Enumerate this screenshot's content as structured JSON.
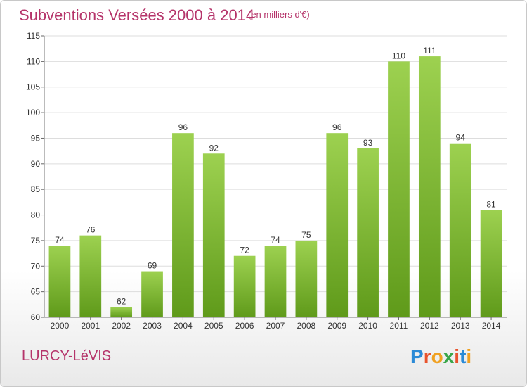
{
  "header": {
    "title": "Subventions Versées 2000 à 2014",
    "unit": "(en milliers d'€)"
  },
  "footer": {
    "commune": "LURCY-LéVIS",
    "brand": "Proxiti"
  },
  "colors": {
    "title": "#b5346a",
    "bar_top": "#9dd150",
    "bar_bottom": "#5f9a1a",
    "grid": "#dddddd"
  },
  "chart_data": {
    "type": "bar",
    "title": "Subventions Versées 2000 à 2014",
    "subtitle": "(en milliers d'€)",
    "xlabel": "",
    "ylabel": "",
    "categories": [
      "2000",
      "2001",
      "2002",
      "2003",
      "2004",
      "2005",
      "2006",
      "2007",
      "2008",
      "2009",
      "2010",
      "2011",
      "2012",
      "2013",
      "2014"
    ],
    "values": [
      74,
      76,
      62,
      69,
      96,
      92,
      72,
      74,
      75,
      96,
      93,
      110,
      111,
      94,
      81
    ],
    "ylim": [
      60,
      115
    ],
    "yticks": [
      60,
      65,
      70,
      75,
      80,
      85,
      90,
      95,
      100,
      105,
      110,
      115
    ],
    "grid": true,
    "legend": "none"
  }
}
